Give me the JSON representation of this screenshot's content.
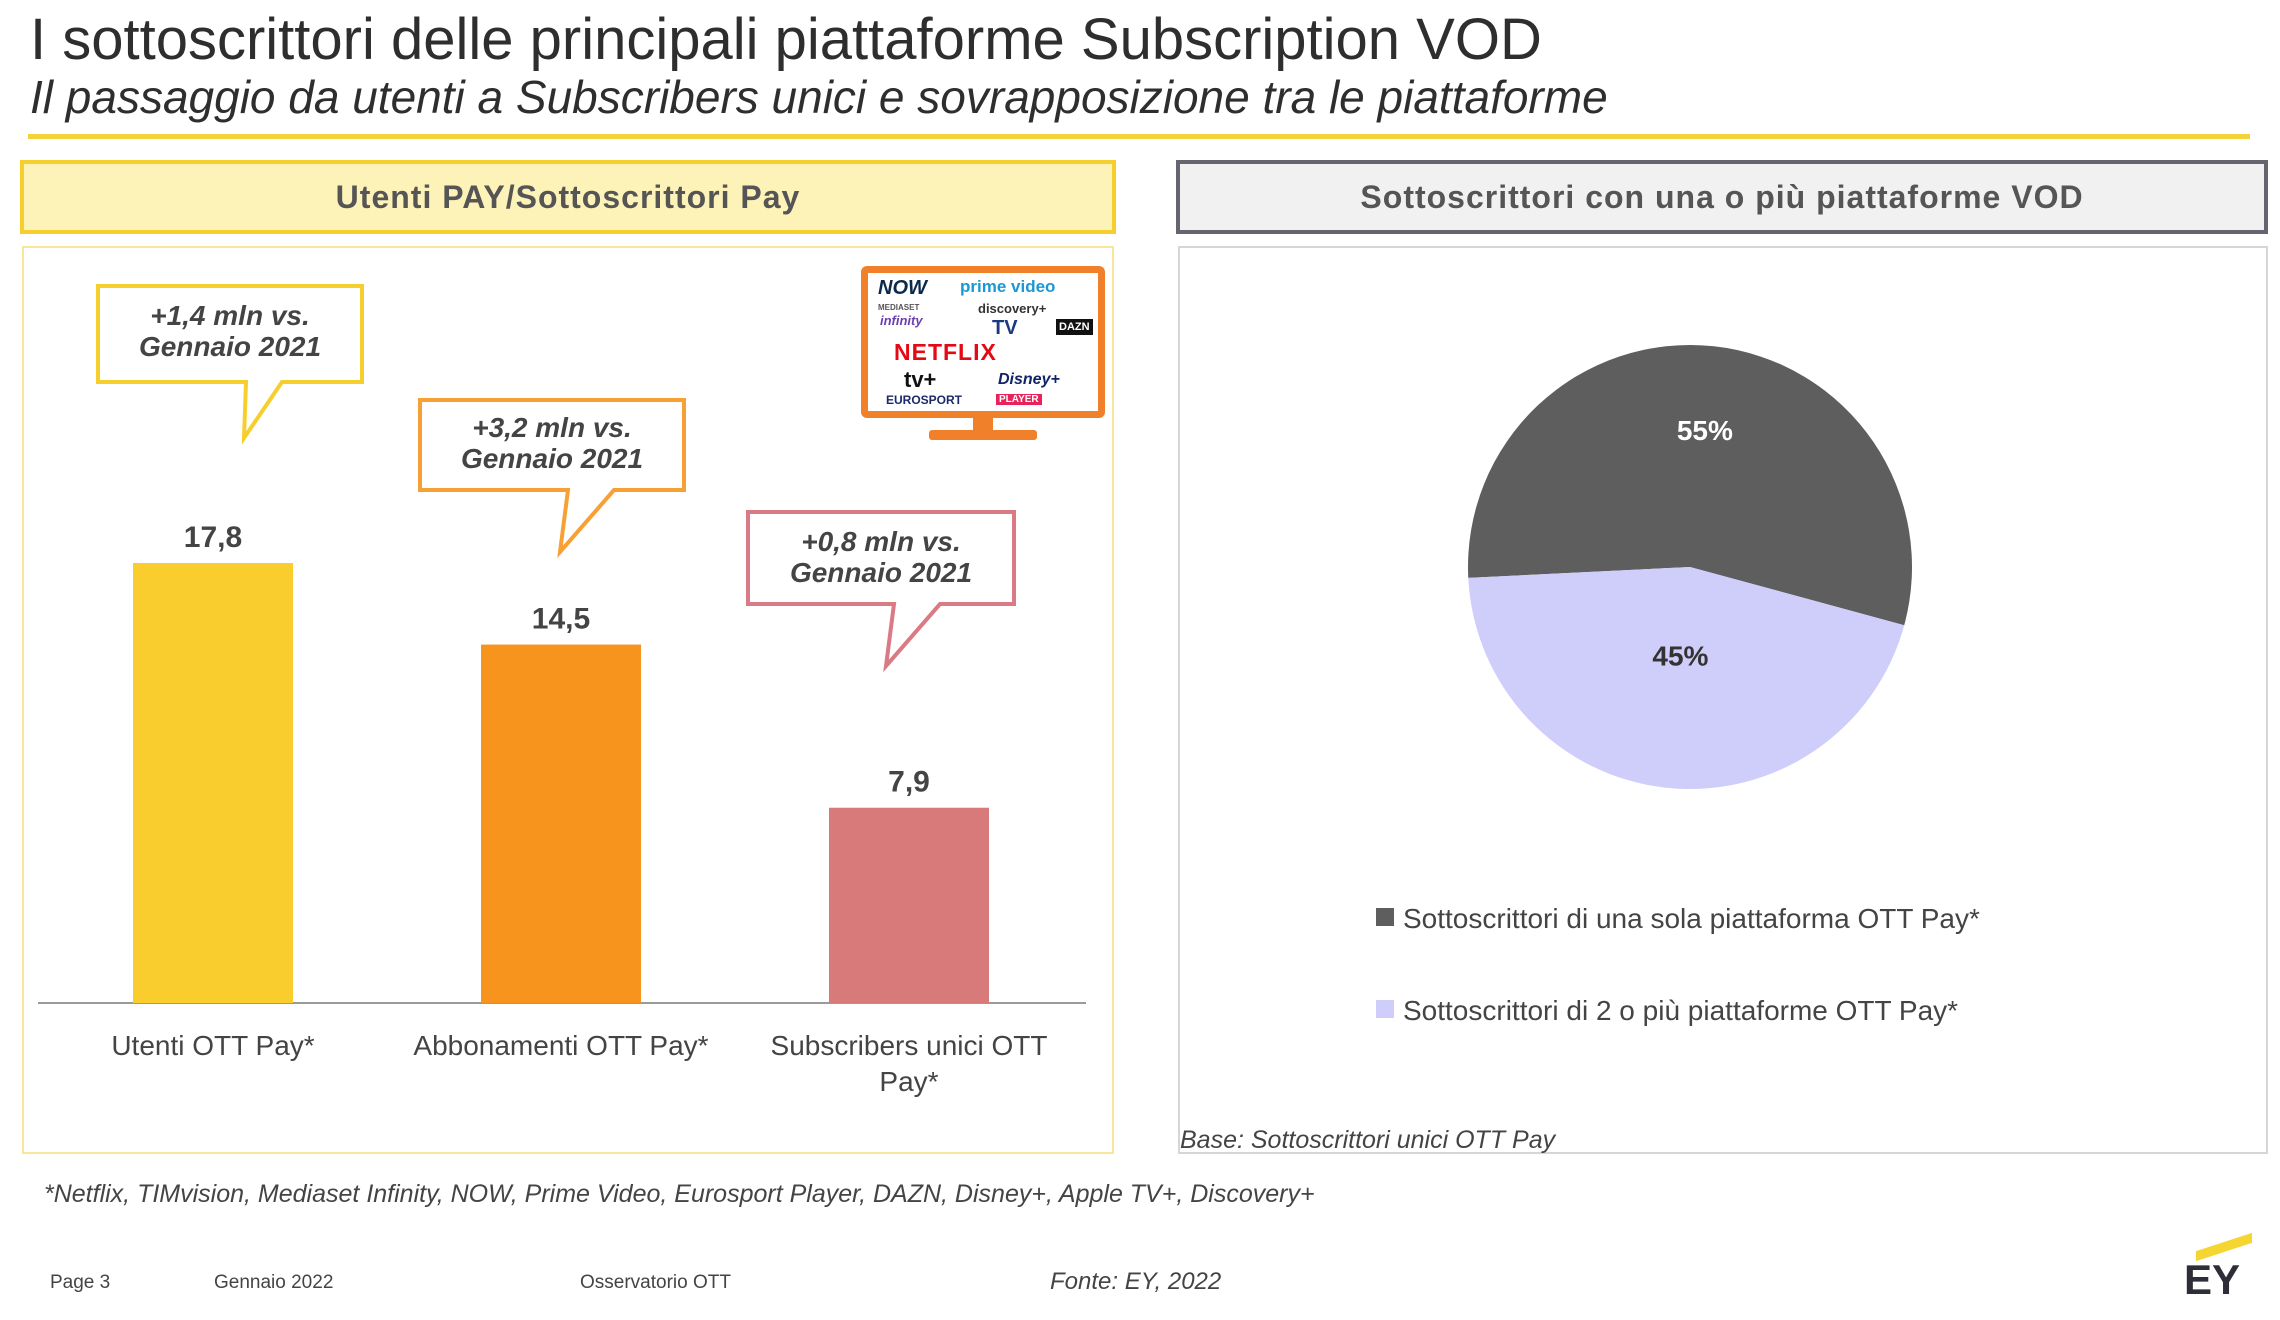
{
  "header": {
    "title": "I sottoscrittori delle principali piattaforme Subscription VOD",
    "subtitle": "Il passaggio da utenti a Subscribers unici e sovrapposizione tra le piattaforme"
  },
  "left_panel": {
    "header": "Utenti PAY/Sottoscrittori Pay",
    "callouts": [
      {
        "line1": "+1,4 mln vs.",
        "line2": "Gennaio 2021"
      },
      {
        "line1": "+3,2 mln vs.",
        "line2": "Gennaio 2021"
      },
      {
        "line1": "+0,8 mln vs.",
        "line2": "Gennaio 2021"
      }
    ],
    "tv_logos": {
      "now": "NOW",
      "prime": "prime video",
      "mediaset": "MEDIASET",
      "infinity": "infinity",
      "discovery": "discovery+",
      "timvision": "TV",
      "dazn": "DAZN",
      "netflix": "NETFLIX",
      "appletv": "tv+",
      "disney": "Disney+",
      "eurosport": "EUROSPORT",
      "player": "PLAYER"
    }
  },
  "right_panel": {
    "header": "Sottoscrittori con una o più piattaforme VOD",
    "base_note": "Base: Sottoscrittori unici OTT Pay"
  },
  "chart_data": [
    {
      "type": "bar",
      "categories": [
        "Utenti OTT Pay*",
        "Abbonamenti OTT Pay*",
        "Subscribers unici OTT Pay*"
      ],
      "values": [
        17.8,
        14.5,
        7.9
      ],
      "value_labels": [
        "17,8",
        "14,5",
        "7,9"
      ],
      "colors": [
        "#f9cd2e",
        "#f7941e",
        "#d87a7a"
      ],
      "ylim": [
        0,
        20
      ]
    },
    {
      "type": "pie",
      "labels": [
        "Sottoscrittori di una sola piattaforma OTT Pay*",
        "Sottoscrittori di 2 o più piattaforme OTT Pay*"
      ],
      "values": [
        55,
        45
      ],
      "value_labels": [
        "55%",
        "45%"
      ],
      "colors": [
        "#5e5e5e",
        "#cfcdfa"
      ],
      "legend": "bottom"
    }
  ],
  "footnote": "*Netflix, TIMvision, Mediaset Infinity, NOW, Prime Video, Eurosport Player, DAZN, Disney+, Apple TV+, Discovery+",
  "footer": {
    "page": "Page 3",
    "date": "Gennaio 2022",
    "report": "Osservatorio OTT",
    "source": "Fonte: EY, 2022",
    "logo": "EY"
  }
}
